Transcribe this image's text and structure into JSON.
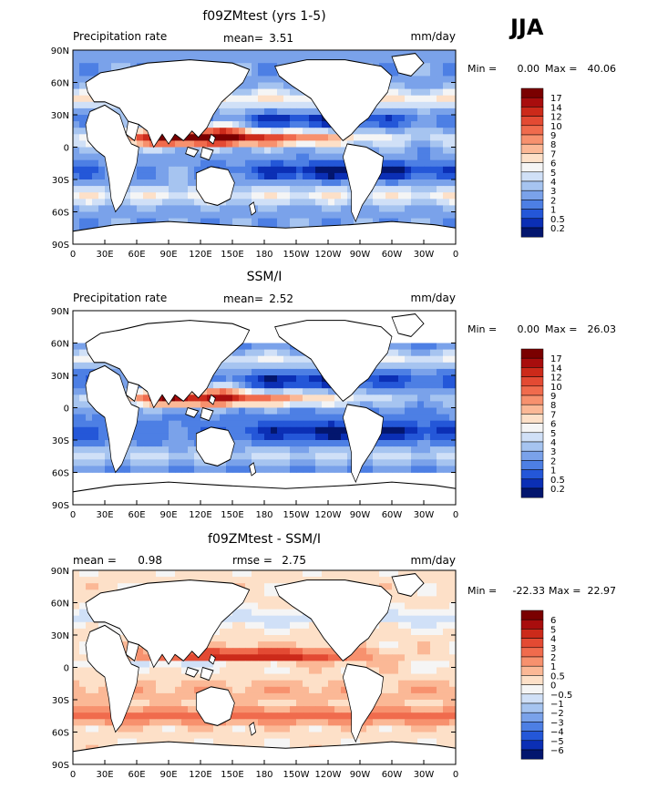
{
  "figure": {
    "season": "JJA"
  },
  "colors": {
    "ocean_low": "#0a1f9a",
    "ocean_high": "#8b0000",
    "land": "#ffffff",
    "frame": "#000000"
  },
  "chart_data": [
    {
      "type": "heatmap",
      "title": "f09ZMtest (yrs 1-5)",
      "left_label": "Precipitation rate",
      "mean_label": "mean=",
      "mean_value": "3.51",
      "units": "mm/day",
      "min_label": "Min =",
      "min_value": "0.00",
      "max_label": "Max =",
      "max_value": "40.06",
      "x_ticks": [
        "0",
        "30E",
        "60E",
        "90E",
        "120E",
        "150E",
        "180",
        "150W",
        "120W",
        "90W",
        "60W",
        "30W",
        "0"
      ],
      "y_ticks": [
        "90N",
        "60N",
        "30N",
        "0",
        "30S",
        "60S",
        "90S"
      ],
      "legend_levels": [
        "17",
        "14",
        "12",
        "10",
        "9",
        "8",
        "7",
        "6",
        "5",
        "4",
        "3",
        "2",
        "1",
        "0.5",
        "0.2"
      ],
      "legend_colors": [
        "#7a0000",
        "#a80d0d",
        "#cc2a1a",
        "#e34a33",
        "#f06b4d",
        "#f7916e",
        "#fbb896",
        "#fde0c8",
        "#f5f5f5",
        "#d0e0f7",
        "#a6c4f0",
        "#7aa2ea",
        "#4d7fe4",
        "#2457d8",
        "#0b2fb5",
        "#03166e"
      ]
    },
    {
      "type": "heatmap",
      "title": "SSM/I",
      "left_label": "Precipitation rate",
      "mean_label": "mean=",
      "mean_value": "2.52",
      "units": "mm/day",
      "min_label": "Min =",
      "min_value": "0.00",
      "max_label": "Max =",
      "max_value": "26.03",
      "x_ticks": [
        "0",
        "30E",
        "60E",
        "90E",
        "120E",
        "150E",
        "180",
        "150W",
        "120W",
        "90W",
        "60W",
        "30W",
        "0"
      ],
      "y_ticks": [
        "90N",
        "60N",
        "30N",
        "0",
        "30S",
        "60S",
        "90S"
      ],
      "legend_levels": [
        "17",
        "14",
        "12",
        "10",
        "9",
        "8",
        "7",
        "6",
        "5",
        "4",
        "3",
        "2",
        "1",
        "0.5",
        "0.2"
      ],
      "legend_colors": [
        "#7a0000",
        "#a80d0d",
        "#cc2a1a",
        "#e34a33",
        "#f06b4d",
        "#f7916e",
        "#fbb896",
        "#fde0c8",
        "#f5f5f5",
        "#d0e0f7",
        "#a6c4f0",
        "#7aa2ea",
        "#4d7fe4",
        "#2457d8",
        "#0b2fb5",
        "#03166e"
      ]
    },
    {
      "type": "heatmap",
      "title": "f09ZMtest - SSM/I",
      "left_label": "mean =",
      "left_value": "0.98",
      "rmse_label": "rmse =",
      "rmse_value": "2.75",
      "units": "mm/day",
      "min_label": "Min =",
      "min_value": "-22.33",
      "max_label": "Max =",
      "max_value": "22.97",
      "x_ticks": [
        "0",
        "30E",
        "60E",
        "90E",
        "120E",
        "150E",
        "180",
        "150W",
        "120W",
        "90W",
        "60W",
        "30W",
        "0"
      ],
      "y_ticks": [
        "90N",
        "60N",
        "30N",
        "0",
        "30S",
        "60S",
        "90S"
      ],
      "legend_levels": [
        "6",
        "5",
        "4",
        "3",
        "2",
        "1",
        "0.5",
        "0",
        "−0.5",
        "−1",
        "−2",
        "−3",
        "−4",
        "−5",
        "−6"
      ],
      "legend_colors": [
        "#7a0000",
        "#a80d0d",
        "#cc2a1a",
        "#e34a33",
        "#f06b4d",
        "#f7916e",
        "#fbb896",
        "#fde0c8",
        "#f5f5f5",
        "#d0e0f7",
        "#a6c4f0",
        "#7aa2ea",
        "#4d7fe4",
        "#2457d8",
        "#0b2fb5",
        "#03166e"
      ]
    }
  ]
}
